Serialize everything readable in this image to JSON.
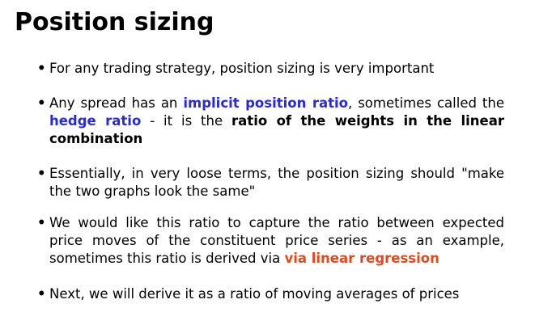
{
  "slide": {
    "title": "Position sizing",
    "bullet_marker": "•",
    "bullets": [
      {
        "parts": [
          {
            "text": "For any trading strategy, position sizing is very important"
          }
        ]
      },
      {
        "parts": [
          {
            "text": "Any spread has an "
          },
          {
            "text": "implicit position ratio"
          },
          {
            "text": ", sometimes called the "
          },
          {
            "text": "hedge ratio"
          },
          {
            "text": " - it is the "
          },
          {
            "text": "ratio of the weights in the linear combination"
          }
        ]
      },
      {
        "parts": [
          {
            "text": "Essentially, in very loose terms, the position sizing should \"make the two graphs look the same\""
          }
        ]
      },
      {
        "parts": [
          {
            "text": "We would like this ratio to capture the ratio between expected price moves of the constituent price series - as an example, sometimes this ratio is derived via "
          },
          {
            "text": "via linear regression"
          }
        ]
      },
      {
        "parts": [
          {
            "text": "Next, we will derive it as a ratio of moving averages of prices"
          }
        ]
      }
    ]
  },
  "colors": {
    "highlight_blue": "#2a2ad6",
    "highlight_red": "#e04a1f",
    "text": "#000000",
    "background": "#ffffff"
  }
}
